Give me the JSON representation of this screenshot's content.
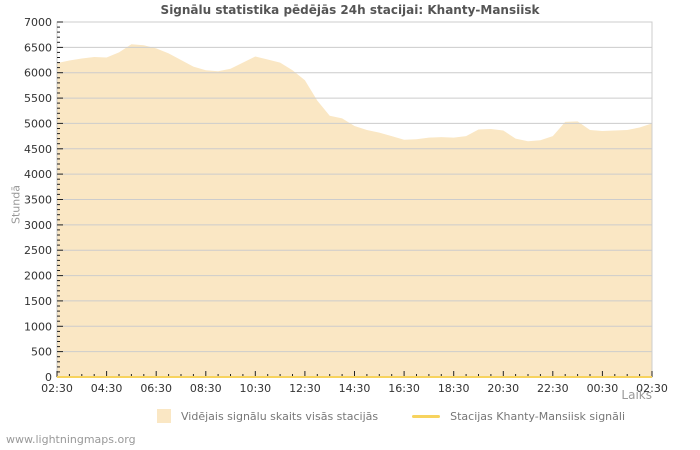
{
  "page": {
    "title": "Signālu statistika pēdējās 24h stacijai: Khanty-Mansiisk",
    "watermark": "www.lightningmaps.org"
  },
  "chart_data": {
    "type": "area",
    "title": "Signālu statistika pēdējās 24h stacijai: Khanty-Mansiisk",
    "xlabel": "Laiks",
    "ylabel": "Stundā",
    "ylim": [
      0,
      7000
    ],
    "y_major_step": 500,
    "y_minor_step": 100,
    "grid": "horizontal",
    "legend_position": "bottom",
    "x_major_labels": [
      "02:30",
      "04:30",
      "06:30",
      "08:30",
      "10:30",
      "12:30",
      "14:30",
      "16:30",
      "18:30",
      "20:30",
      "22:30",
      "00:30",
      "02:30"
    ],
    "x_major_every": 4,
    "categories": [
      "02:30",
      "03:00",
      "03:30",
      "04:00",
      "04:30",
      "05:00",
      "05:30",
      "06:00",
      "06:30",
      "07:00",
      "07:30",
      "08:00",
      "08:30",
      "09:00",
      "09:30",
      "10:00",
      "10:30",
      "11:00",
      "11:30",
      "12:00",
      "12:30",
      "13:00",
      "13:30",
      "14:00",
      "14:30",
      "15:00",
      "15:30",
      "16:00",
      "16:30",
      "17:00",
      "17:30",
      "18:00",
      "18:30",
      "19:00",
      "19:30",
      "20:00",
      "20:30",
      "21:00",
      "21:30",
      "22:00",
      "22:30",
      "23:00",
      "23:30",
      "00:00",
      "00:30",
      "01:00",
      "01:30",
      "02:00",
      "02:30"
    ],
    "series": [
      {
        "name": "Vidējais signālu skaits visās stacijās",
        "kind": "area",
        "color": "#FAE7C4",
        "values": [
          6190,
          6240,
          6280,
          6310,
          6300,
          6400,
          6560,
          6540,
          6480,
          6380,
          6250,
          6120,
          6050,
          6030,
          6080,
          6200,
          6320,
          6260,
          6200,
          6050,
          5850,
          5450,
          5150,
          5100,
          4950,
          4870,
          4820,
          4750,
          4680,
          4690,
          4720,
          4730,
          4720,
          4750,
          4880,
          4890,
          4860,
          4700,
          4650,
          4670,
          4750,
          5030,
          5040,
          4870,
          4850,
          4860,
          4870,
          4920,
          5000
        ]
      },
      {
        "name": "Stacijas Khanty-Mansiisk signāli",
        "kind": "line",
        "color": "#F7D35E",
        "values": [
          0,
          0,
          0,
          0,
          0,
          0,
          0,
          0,
          0,
          0,
          0,
          0,
          0,
          0,
          0,
          0,
          0,
          0,
          0,
          0,
          0,
          0,
          0,
          0,
          0,
          0,
          0,
          0,
          0,
          0,
          0,
          0,
          0,
          0,
          0,
          0,
          0,
          0,
          0,
          0,
          0,
          0,
          0,
          0,
          0,
          0,
          0,
          0,
          0
        ]
      }
    ],
    "colors": {
      "grid": "#CCCCCC",
      "border": "#CCCCCC",
      "tick": "#222222",
      "tick_label": "#333333",
      "background": "#FFFFFF"
    }
  },
  "legend": {
    "items": [
      {
        "label": "Vidējais signālu skaits visās stacijās"
      },
      {
        "label": "Stacijas Khanty-Mansiisk signāli"
      }
    ]
  }
}
